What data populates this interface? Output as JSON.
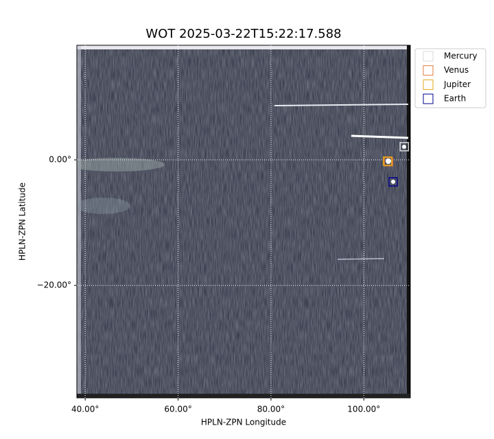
{
  "chart_data": {
    "type": "image",
    "title": "WOT 2025-03-22T15:22:17.588",
    "x_label": "HPLN-ZPN Longitude",
    "y_label": "HPLN-ZPN Latitude",
    "xlim": [
      38.2,
      110.0
    ],
    "ylim": [
      -37.9,
      18.25
    ],
    "xticks": [
      {
        "value": 40,
        "label": "40.00°"
      },
      {
        "value": 60,
        "label": "60.00°"
      },
      {
        "value": 80,
        "label": "80.00°"
      },
      {
        "value": 100,
        "label": "100.00°"
      }
    ],
    "yticks": [
      {
        "value": 0,
        "label": "0.00°"
      },
      {
        "value": -20,
        "label": "−20.00°"
      }
    ],
    "grid": true,
    "legend": "upper-right-outside",
    "series": [
      {
        "name": "Mercury",
        "color": "#d9d9d9",
        "x": [
          108.7
        ],
        "values": [
          2.1
        ]
      },
      {
        "name": "Venus",
        "color": "#e07b39",
        "x": [
          105.3
        ],
        "values": [
          -0.3
        ]
      },
      {
        "name": "Jupiter",
        "color": "#e6a817",
        "x": [
          105.1
        ],
        "values": [
          -0.2
        ]
      },
      {
        "name": "Earth",
        "color": "#00008b",
        "x": [
          106.3
        ],
        "values": [
          -3.5
        ]
      }
    ]
  }
}
